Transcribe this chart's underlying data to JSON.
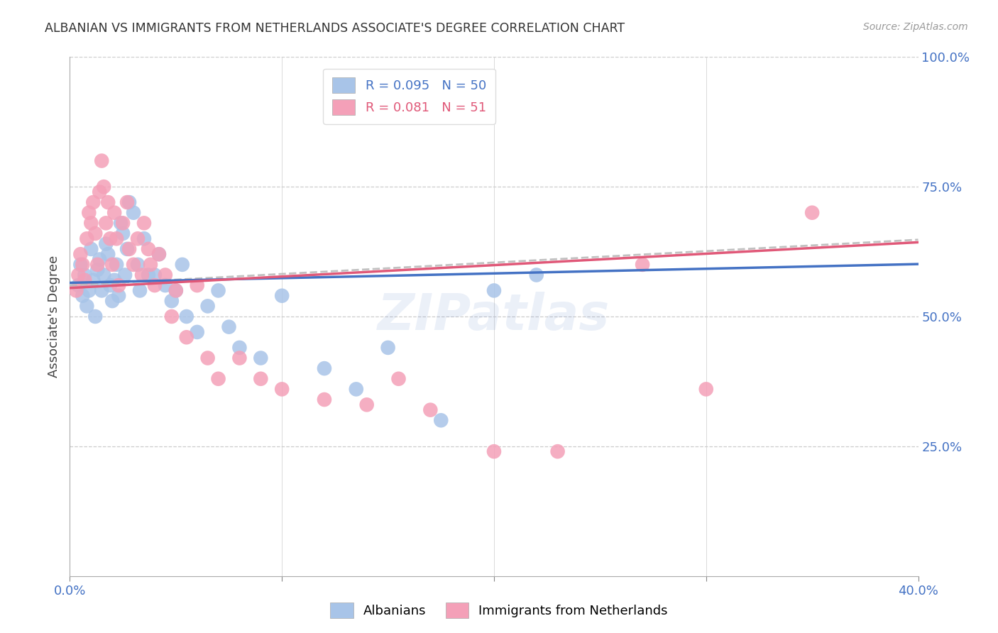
{
  "title": "ALBANIAN VS IMMIGRANTS FROM NETHERLANDS ASSOCIATE'S DEGREE CORRELATION CHART",
  "source": "Source: ZipAtlas.com",
  "ylabel": "Associate's Degree",
  "xlim": [
    0.0,
    0.4
  ],
  "ylim": [
    0.0,
    1.0
  ],
  "xtick_positions": [
    0.0,
    0.1,
    0.2,
    0.3,
    0.4
  ],
  "xtick_labels": [
    "0.0%",
    "",
    "",
    "",
    "40.0%"
  ],
  "ytick_positions": [
    0.0,
    0.25,
    0.5,
    0.75,
    1.0
  ],
  "ytick_labels_right": [
    "",
    "25.0%",
    "50.0%",
    "75.0%",
    "100.0%"
  ],
  "albanians_color": "#a8c4e8",
  "netherlands_color": "#f4a0b8",
  "trendline_albanian_color": "#4472c4",
  "trendline_netherlands_color": "#e05878",
  "watermark": "ZIPatlas",
  "background_color": "#ffffff",
  "grid_color": "#cccccc",
  "albanian_x": [
    0.004,
    0.005,
    0.006,
    0.007,
    0.008,
    0.009,
    0.01,
    0.011,
    0.012,
    0.013,
    0.014,
    0.015,
    0.016,
    0.017,
    0.018,
    0.019,
    0.02,
    0.021,
    0.022,
    0.023,
    0.024,
    0.025,
    0.026,
    0.027,
    0.028,
    0.03,
    0.032,
    0.033,
    0.035,
    0.037,
    0.04,
    0.042,
    0.045,
    0.048,
    0.05,
    0.053,
    0.055,
    0.06,
    0.065,
    0.07,
    0.075,
    0.08,
    0.09,
    0.1,
    0.12,
    0.135,
    0.15,
    0.175,
    0.2,
    0.22
  ],
  "albanian_y": [
    0.56,
    0.6,
    0.54,
    0.58,
    0.52,
    0.55,
    0.63,
    0.57,
    0.5,
    0.59,
    0.61,
    0.55,
    0.58,
    0.64,
    0.62,
    0.56,
    0.53,
    0.57,
    0.6,
    0.54,
    0.68,
    0.66,
    0.58,
    0.63,
    0.72,
    0.7,
    0.6,
    0.55,
    0.65,
    0.58,
    0.58,
    0.62,
    0.56,
    0.53,
    0.55,
    0.6,
    0.5,
    0.47,
    0.52,
    0.55,
    0.48,
    0.44,
    0.42,
    0.54,
    0.4,
    0.36,
    0.44,
    0.3,
    0.55,
    0.58
  ],
  "netherlands_x": [
    0.003,
    0.004,
    0.005,
    0.006,
    0.007,
    0.008,
    0.009,
    0.01,
    0.011,
    0.012,
    0.013,
    0.014,
    0.015,
    0.016,
    0.017,
    0.018,
    0.019,
    0.02,
    0.021,
    0.022,
    0.023,
    0.025,
    0.027,
    0.028,
    0.03,
    0.032,
    0.034,
    0.035,
    0.037,
    0.038,
    0.04,
    0.042,
    0.045,
    0.048,
    0.05,
    0.055,
    0.06,
    0.065,
    0.07,
    0.08,
    0.09,
    0.1,
    0.12,
    0.14,
    0.155,
    0.17,
    0.2,
    0.23,
    0.27,
    0.3,
    0.35
  ],
  "netherlands_y": [
    0.55,
    0.58,
    0.62,
    0.6,
    0.57,
    0.65,
    0.7,
    0.68,
    0.72,
    0.66,
    0.6,
    0.74,
    0.8,
    0.75,
    0.68,
    0.72,
    0.65,
    0.6,
    0.7,
    0.65,
    0.56,
    0.68,
    0.72,
    0.63,
    0.6,
    0.65,
    0.58,
    0.68,
    0.63,
    0.6,
    0.56,
    0.62,
    0.58,
    0.5,
    0.55,
    0.46,
    0.56,
    0.42,
    0.38,
    0.42,
    0.38,
    0.36,
    0.34,
    0.33,
    0.38,
    0.32,
    0.24,
    0.24,
    0.6,
    0.36,
    0.7
  ],
  "legend_r1": "R = 0.095",
  "legend_n1": "N = 50",
  "legend_r2": "R = 0.081",
  "legend_n2": "N = 51",
  "legend_label1": "Albanians",
  "legend_label2": "Immigrants from Netherlands"
}
